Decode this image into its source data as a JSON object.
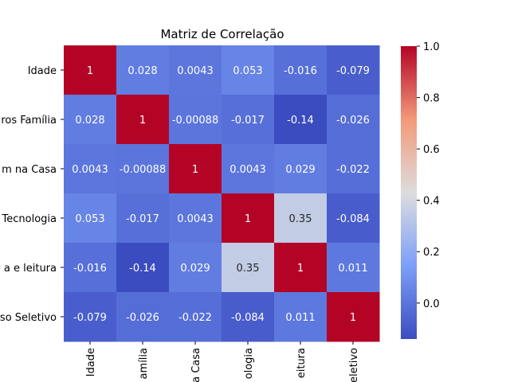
{
  "chart_data": {
    "type": "heatmap",
    "title": "Matriz de Correlação",
    "row_labels": [
      "Idade",
      "ros Família",
      "m na Casa",
      "Tecnologia",
      "a e leitura",
      "so Seletivo"
    ],
    "col_labels": [
      "Idade",
      "amília",
      "a Casa",
      "ologia",
      "eitura",
      "eletivo"
    ],
    "values": [
      [
        1,
        0.028,
        0.0043,
        0.053,
        -0.016,
        -0.079
      ],
      [
        0.028,
        1,
        -0.00088,
        -0.017,
        -0.14,
        -0.026
      ],
      [
        0.0043,
        -0.00088,
        1,
        0.0043,
        0.029,
        -0.022
      ],
      [
        0.053,
        -0.017,
        0.0043,
        1,
        0.35,
        -0.084
      ],
      [
        -0.016,
        -0.14,
        0.029,
        0.35,
        1,
        0.011
      ],
      [
        -0.079,
        -0.026,
        -0.022,
        -0.084,
        0.011,
        1
      ]
    ],
    "value_labels": [
      [
        "1",
        "0.028",
        "0.0043",
        "0.053",
        "-0.016",
        "-0.079"
      ],
      [
        "0.028",
        "1",
        "-0.00088",
        "-0.017",
        "-0.14",
        "-0.026"
      ],
      [
        "0.0043",
        "-0.00088",
        "1",
        "0.0043",
        "0.029",
        "-0.022"
      ],
      [
        "0.053",
        "-0.017",
        "0.0043",
        "1",
        "0.35",
        "-0.084"
      ],
      [
        "-0.016",
        "-0.14",
        "0.029",
        "0.35",
        "1",
        "0.011"
      ],
      [
        "-0.079",
        "-0.026",
        "-0.022",
        "-0.084",
        "0.011",
        "1"
      ]
    ],
    "colormap": "coolwarm",
    "color_range": [
      -0.14,
      1.0
    ],
    "colorbar_ticks": [
      "0.0",
      "0.2",
      "0.4",
      "0.6",
      "0.8",
      "1.0"
    ],
    "colorbar_tick_values": [
      0.0,
      0.2,
      0.4,
      0.6,
      0.8,
      1.0
    ]
  }
}
